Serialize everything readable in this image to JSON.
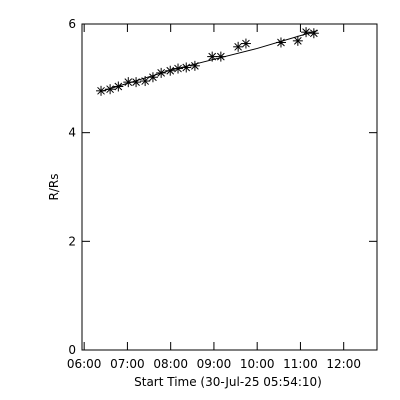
{
  "chart_data": {
    "type": "scatter",
    "xlabel": "Start Time (30-Jul-25 05:54:10)",
    "ylabel": "R/Rs",
    "xlim": [
      5.95,
      12.77
    ],
    "xticks": [
      {
        "value": 6,
        "label": "06:00"
      },
      {
        "value": 7,
        "label": "07:00"
      },
      {
        "value": 8,
        "label": "08:00"
      },
      {
        "value": 9,
        "label": "09:00"
      },
      {
        "value": 10,
        "label": "10:00"
      },
      {
        "value": 11,
        "label": "11:00"
      },
      {
        "value": 12,
        "label": "12:00"
      }
    ],
    "ylim": [
      0,
      6
    ],
    "yticks": [
      0,
      2,
      4,
      6
    ],
    "series": [
      {
        "color": "#000000",
        "marker": "asterisk",
        "x": [
          6.39,
          6.6,
          6.79,
          7.02,
          7.2,
          7.41,
          7.59,
          7.78,
          7.99,
          8.17,
          8.36,
          8.56,
          8.96,
          9.16,
          9.56,
          9.74,
          10.55,
          10.94,
          11.13,
          11.31
        ],
        "values": [
          4.77,
          4.8,
          4.85,
          4.93,
          4.93,
          4.95,
          5.02,
          5.1,
          5.14,
          5.18,
          5.2,
          5.23,
          5.4,
          5.4,
          5.58,
          5.64,
          5.66,
          5.69,
          5.85,
          5.83
        ]
      },
      {
        "color": "#000000",
        "marker": "line",
        "x": [
          6.39,
          8,
          10,
          11.4
        ],
        "values": [
          4.76,
          5.15,
          5.55,
          5.88
        ]
      }
    ]
  }
}
